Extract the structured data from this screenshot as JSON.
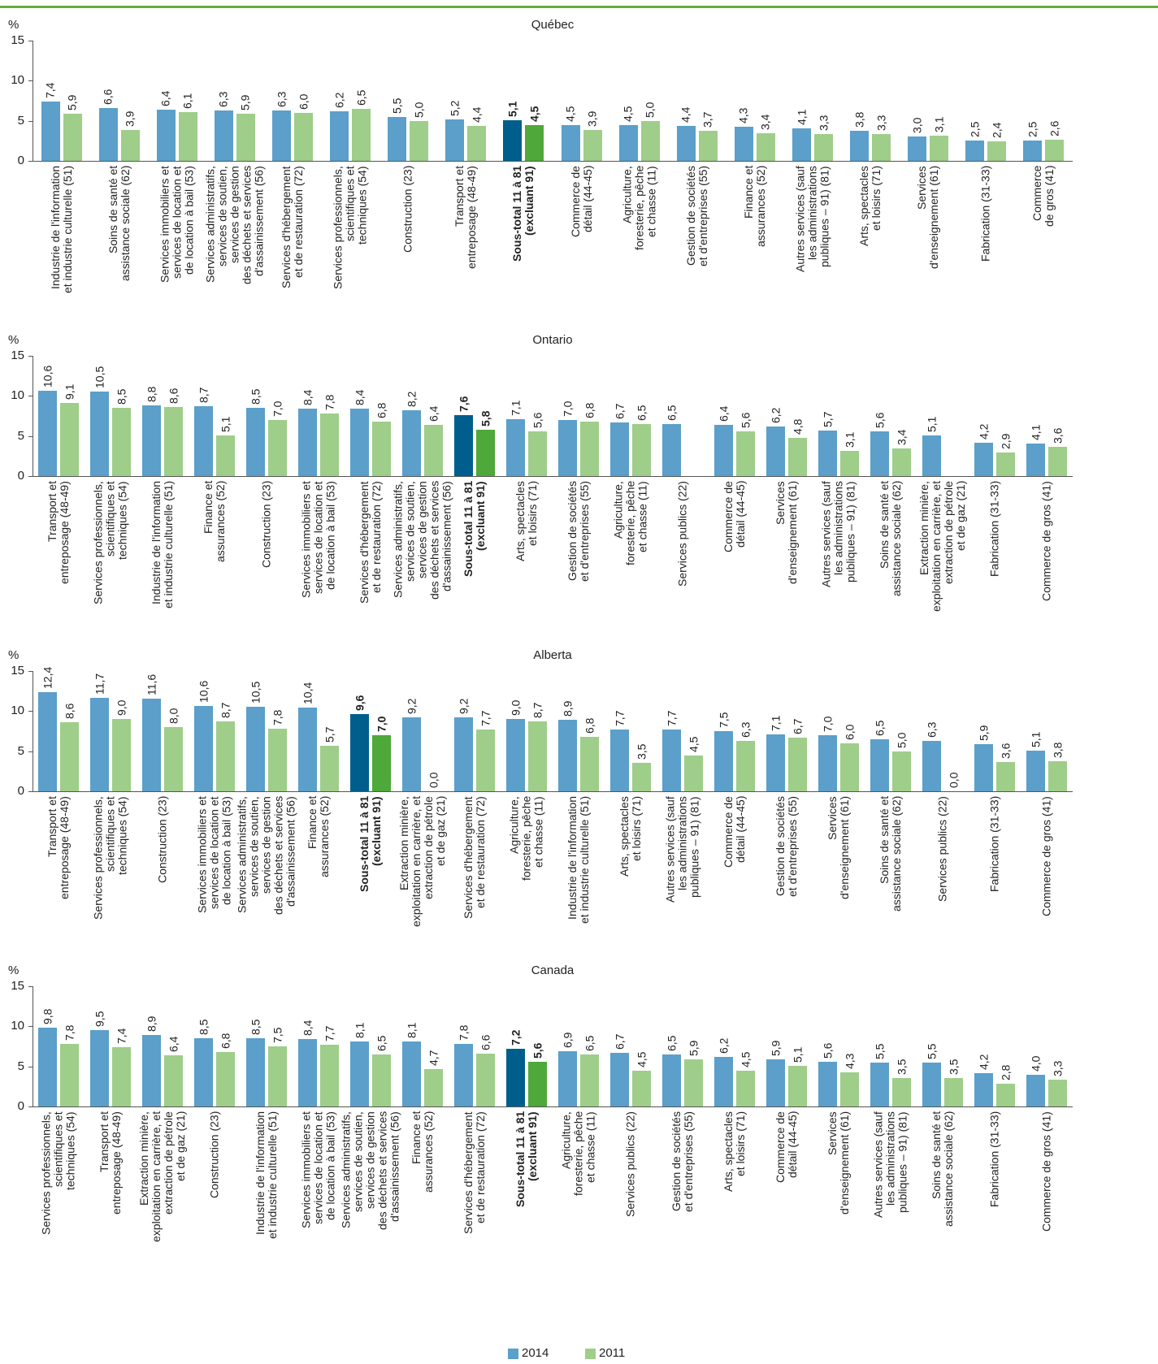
{
  "chart_data": [
    {
      "type": "bar",
      "title": "Québec",
      "y_label": "%",
      "ylim": [
        0,
        15
      ],
      "yticks": [
        0,
        5,
        10,
        15
      ],
      "highlight_index": 8,
      "categories": [
        "Industrie de l'information\net industrie culturelle (51)",
        "Soins de santé et\nassistance sociale (62)",
        "Services immobiliers et\nservices de location et\nde location à bail (53)",
        "Services administratifs,\nservices de soutien,\nservices de gestion\ndes déchets et services\nd'assainissement (56)",
        "Services d'hébergement\net de restauration (72)",
        "Services professionnels,\nscientifiques et\ntechniques (54)",
        "Construction (23)",
        "Transport et\nentreposage (48-49)",
        "Sous-total 11 à 81\n(excluant 91)",
        "Commerce de\ndétail (44-45)",
        "Agriculture,\nforesterie, pêche\net chasse (11)",
        "Gestion de sociétés\net d'entreprises (55)",
        "Finance et\nassurances (52)",
        "Autres services (sauf\nles administrations\npubliques – 91) (81)",
        "Arts, spectacles\net loisirs (71)",
        "Services\nd'enseignement (61)",
        "Fabrication (31-33)",
        "Commerce\nde gros (41)"
      ],
      "series": [
        {
          "color": "#5b9fca",
          "highlight_color": "#005e8c",
          "values": [
            7.4,
            6.6,
            6.4,
            6.3,
            6.3,
            6.2,
            5.5,
            5.2,
            5.1,
            4.5,
            4.5,
            4.4,
            4.3,
            4.1,
            3.8,
            3.0,
            2.5,
            2.5
          ],
          "value_labels": [
            "7,4",
            "6,6",
            "6,4",
            "6,3",
            "6,3",
            "6,2",
            "5,5",
            "5,2",
            "5,1",
            "4,5",
            "4,5",
            "4,4",
            "4,3",
            "4,1",
            "3,8",
            "3,0",
            "2,5",
            "2,5"
          ]
        },
        {
          "color": "#9fcd8a",
          "highlight_color": "#4ea83a",
          "values": [
            5.9,
            3.9,
            6.1,
            5.9,
            6.0,
            6.5,
            5.0,
            4.4,
            4.5,
            3.9,
            5.0,
            3.7,
            3.4,
            3.3,
            3.3,
            3.1,
            2.4,
            2.6
          ],
          "value_labels": [
            "5,9",
            "3,9",
            "6,1",
            "5,9",
            "6,0",
            "6,5",
            "5,0",
            "4,4",
            "4,5",
            "3,9",
            "5,0",
            "3,7",
            "3,4",
            "3,3",
            "3,3",
            "3,1",
            "2,4",
            "2,6"
          ]
        }
      ]
    },
    {
      "type": "bar",
      "title": "Ontario",
      "y_label": "%",
      "ylim": [
        0,
        15
      ],
      "yticks": [
        0,
        5,
        10,
        15
      ],
      "highlight_index": 8,
      "categories": [
        "Transport et\nentreposage (48-49)",
        "Services professionnels,\nscientifiques et\ntechniques (54)",
        "Industrie de l'information\net industrie culturelle (51)",
        "Finance et\nassurances (52)",
        "Construction (23)",
        "Services immobiliers et\nservices de location et\nde location à bail (53)",
        "Services d'hébergement\net de restauration (72)",
        "Services administratifs,\nservices de soutien,\nservices de gestion\ndes déchets et services\nd'assainissement (56)",
        "Sous-total 11 à 81\n(excluant 91)",
        "Arts, spectacles\net loisirs (71)",
        "Gestion de sociétés\net d'entreprises (55)",
        "Agriculture,\nforesterie, pêche\net chasse (11)",
        "Services publics (22)",
        "Commerce de\ndétail (44-45)",
        "Services\nd'enseignement (61)",
        "Autres services (sauf\nles administrations\npubliques – 91) (81)",
        "Soins de santé et\nassistance sociale (62)",
        "Extraction minière,\nexploitation en carrière, et\nextraction de pétrole\net de gaz (21)",
        "Fabrication (31-33)",
        "Commerce de gros (41)"
      ],
      "series": [
        {
          "color": "#5b9fca",
          "highlight_color": "#005e8c",
          "values": [
            10.6,
            10.5,
            8.8,
            8.7,
            8.5,
            8.4,
            8.4,
            8.2,
            7.6,
            7.1,
            7.0,
            6.7,
            6.5,
            6.4,
            6.2,
            5.7,
            5.6,
            5.1,
            4.2,
            4.1
          ],
          "value_labels": [
            "10,6",
            "10,5",
            "8,8",
            "8,7",
            "8,5",
            "8,4",
            "8,4",
            "8,2",
            "7,6",
            "7,1",
            "7,0",
            "6,7",
            "6,5",
            "6,4",
            "6,2",
            "5,7",
            "5,6",
            "5,1",
            "4,2",
            "4,1"
          ]
        },
        {
          "color": "#9fcd8a",
          "highlight_color": "#4ea83a",
          "values": [
            9.1,
            8.5,
            8.6,
            5.1,
            7.0,
            7.8,
            6.8,
            6.4,
            5.8,
            5.6,
            6.8,
            6.5,
            null,
            5.6,
            4.8,
            3.1,
            3.4,
            null,
            2.9,
            3.6
          ],
          "value_labels": [
            "9,1",
            "8,5",
            "8,6",
            "5,1",
            "7,0",
            "7,8",
            "6,8",
            "6,4",
            "5,8",
            "5,6",
            "6,8",
            "6,5",
            null,
            "5,6",
            "4,8",
            "3,1",
            "3,4",
            null,
            "2,9",
            "3,6"
          ]
        }
      ]
    },
    {
      "type": "bar",
      "title": "Alberta",
      "y_label": "%",
      "ylim": [
        0,
        15
      ],
      "yticks": [
        0,
        5,
        10,
        15
      ],
      "highlight_index": 6,
      "categories": [
        "Transport et\nentreposage (48-49)",
        "Services professionnels,\nscientifiques et\ntechniques (54)",
        "Construction (23)",
        "Services immobiliers et\nservices de location et\nde location à bail (53)",
        "Services administratifs,\nservices de soutien,\nservices de gestion\ndes déchets et services\nd'assainissement (56)",
        "Finance et\nassurances (52)",
        "Sous-total 11 à 81\n(excluant 91)",
        "Extraction minière,\nexploitation en carrière, et\nextraction de pétrole\net de gaz (21)",
        "Services d'hébergement\net de restauration (72)",
        "Agriculture,\nforesterie, pêche\net chasse (11)",
        "Industrie de l'information\net industrie culturelle (51)",
        "Arts, spectacles\net loisirs (71)",
        "Autres services (sauf\nles administrations\npubliques – 91) (81)",
        "Commerce de\ndétail (44-45)",
        "Gestion de sociétés\net d'entreprises (55)",
        "Services\nd'enseignement (61)",
        "Soins de santé et\nassistance sociale (62)",
        "Services publics (22)",
        "Fabrication (31-33)",
        "Commerce de gros (41)"
      ],
      "series": [
        {
          "color": "#5b9fca",
          "highlight_color": "#005e8c",
          "values": [
            12.4,
            11.7,
            11.6,
            10.6,
            10.5,
            10.4,
            9.6,
            9.2,
            9.2,
            9.0,
            8.9,
            7.7,
            7.7,
            7.5,
            7.1,
            7.0,
            6.5,
            6.3,
            5.9,
            5.1
          ],
          "value_labels": [
            "12,4",
            "11,7",
            "11,6",
            "10,6",
            "10,5",
            "10,4",
            "9,6",
            "9,2",
            "9,2",
            "9,0",
            "8,9",
            "7,7",
            "7,7",
            "7,5",
            "7,1",
            "7,0",
            "6,5",
            "6,3",
            "5,9",
            "5,1"
          ]
        },
        {
          "color": "#9fcd8a",
          "highlight_color": "#4ea83a",
          "values": [
            8.6,
            9.0,
            8.0,
            8.7,
            7.8,
            5.7,
            7.0,
            0,
            7.7,
            8.7,
            6.8,
            3.5,
            4.5,
            6.3,
            6.7,
            6.0,
            5.0,
            0,
            3.6,
            3.8
          ],
          "value_labels": [
            "8,6",
            "9,0",
            "8,0",
            "8,7",
            "7,8",
            "5,7",
            "7,0",
            "0,0",
            "7,7",
            "8,7",
            "6,8",
            "3,5",
            "4,5",
            "6,3",
            "6,7",
            "6,0",
            "5,0",
            "0,0",
            "3,6",
            "3,8"
          ]
        }
      ]
    },
    {
      "type": "bar",
      "title": "Canada",
      "y_label": "%",
      "ylim": [
        0,
        15
      ],
      "yticks": [
        0,
        5,
        10,
        15
      ],
      "highlight_index": 9,
      "categories": [
        "Services professionnels,\nscientifiques et\ntechniques (54)",
        "Transport et\nentreposage (48-49)",
        "Extraction minière,\nexploitation en carrière, et\nextraction de pétrole\net de gaz (21)",
        "Construction (23)",
        "Industrie de l'information\net industrie culturelle (51)",
        "Services immobiliers et\nservices de location et\nde location à bail (53)",
        "Services administratifs,\nservices de soutien,\nservices de gestion\ndes déchets et services\nd'assainissement (56)",
        "Finance et\nassurances (52)",
        "Services d'hébergement\net de restauration (72)",
        "Sous-total 11 à 81\n(excluant 91)",
        "Agriculture,\nforesterie, pêche\net chasse (11)",
        "Services publics (22)",
        "Gestion de sociétés\net d'entreprises (55)",
        "Arts, spectacles\net loisirs (71)",
        "Commerce de\ndétail (44-45)",
        "Services\nd'enseignement (61)",
        "Autres services (sauf\nles administrations\npubliques – 91) (81)",
        "Soins de santé et\nassistance sociale (62)",
        "Fabrication (31-33)",
        "Commerce de gros (41)"
      ],
      "series": [
        {
          "name": "2014",
          "color": "#5b9fca",
          "highlight_color": "#005e8c",
          "values": [
            9.8,
            9.5,
            8.9,
            8.5,
            8.5,
            8.4,
            8.1,
            8.1,
            7.8,
            7.2,
            6.9,
            6.7,
            6.5,
            6.2,
            5.9,
            5.6,
            5.5,
            5.5,
            4.2,
            4.0
          ],
          "value_labels": [
            "9,8",
            "9,5",
            "8,9",
            "8,5",
            "8,5",
            "8,4",
            "8,1",
            "8,1",
            "7,8",
            "7,2",
            "6,9",
            "6,7",
            "6,5",
            "6,2",
            "5,9",
            "5,6",
            "5,5",
            "5,5",
            "4,2",
            "4,0"
          ]
        },
        {
          "name": "2011",
          "color": "#9fcd8a",
          "highlight_color": "#4ea83a",
          "values": [
            7.8,
            7.4,
            6.4,
            6.8,
            7.5,
            7.7,
            6.5,
            4.7,
            6.6,
            5.6,
            6.5,
            4.5,
            5.9,
            4.5,
            5.1,
            4.3,
            3.5,
            3.5,
            2.8,
            3.3
          ],
          "value_labels": [
            "7,8",
            "7,4",
            "6,4",
            "6,8",
            "7,5",
            "7,7",
            "6,5",
            "4,7",
            "6,6",
            "5,6",
            "6,5",
            "4,5",
            "5,9",
            "4,5",
            "5,1",
            "4,3",
            "3,5",
            "3,5",
            "2,8",
            "3,3"
          ]
        }
      ]
    }
  ]
}
